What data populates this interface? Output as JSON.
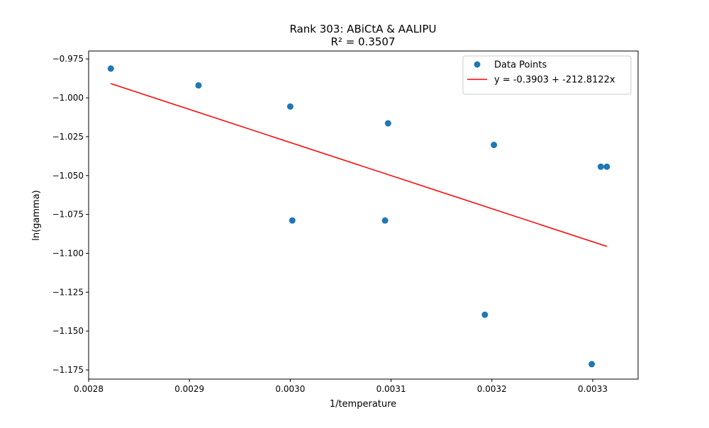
{
  "chart_data": {
    "type": "scatter",
    "title": "Rank 303: ABiCtA & AALIPU",
    "subtitle": "R² = 0.3507",
    "xlabel": "1/temperature",
    "ylabel": "ln(gamma)",
    "xlim": [
      0.0028,
      0.003345
    ],
    "ylim": [
      -1.1809,
      -0.9699
    ],
    "xticks": [
      0.0028,
      0.0029,
      0.003,
      0.0031,
      0.0032,
      0.0033
    ],
    "xtick_labels": [
      "0.0028",
      "0.0029",
      "0.0030",
      "0.0031",
      "0.0032",
      "0.0033"
    ],
    "yticks": [
      -0.975,
      -1.0,
      -1.025,
      -1.05,
      -1.075,
      -1.1,
      -1.125,
      -1.15,
      -1.175
    ],
    "ytick_labels": [
      "−0.975",
      "−1.000",
      "−1.025",
      "−1.050",
      "−1.075",
      "−1.100",
      "−1.125",
      "−1.150",
      "−1.175"
    ],
    "grid": false,
    "legend_position": "top-right",
    "series": [
      {
        "name": "Data Points",
        "kind": "scatter",
        "color": "#1f77b4",
        "x": [
          0.002822,
          0.002909,
          0.003,
          0.003002,
          0.003094,
          0.003097,
          0.003193,
          0.003202,
          0.003299,
          0.003308,
          0.003314
        ],
        "y": [
          -0.9812,
          -0.992,
          -1.0056,
          -1.0789,
          -1.0789,
          -1.0164,
          -1.1395,
          -1.0303,
          -1.1713,
          -1.0443,
          -1.0443
        ]
      },
      {
        "name": "y = -0.3903 + -212.8122x",
        "kind": "line",
        "color": "#ff0000",
        "x": [
          0.002822,
          0.003314
        ],
        "y": [
          -0.99086,
          -1.09557
        ]
      }
    ]
  }
}
